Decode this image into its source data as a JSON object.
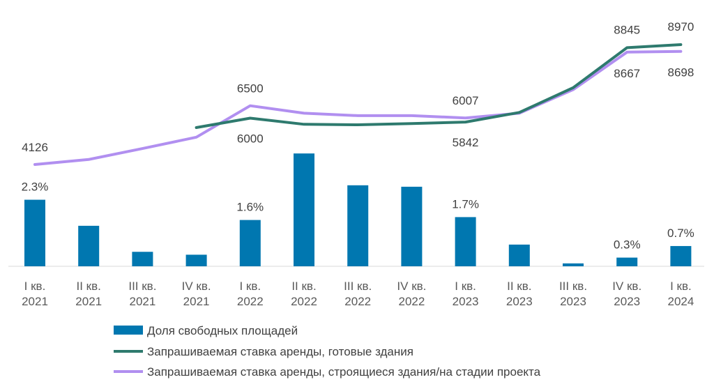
{
  "chart_data": {
    "type": "bar+line",
    "categories": [
      [
        "I кв.",
        "2021"
      ],
      [
        "II кв.",
        "2021"
      ],
      [
        "III кв.",
        "2021"
      ],
      [
        "IV кв.",
        "2021"
      ],
      [
        "I кв.",
        "2022"
      ],
      [
        "II кв.",
        "2022"
      ],
      [
        "III кв.",
        "2022"
      ],
      [
        "IV кв.",
        "2022"
      ],
      [
        "I кв.",
        "2023"
      ],
      [
        "II кв.",
        "2023"
      ],
      [
        "III кв.",
        "2023"
      ],
      [
        "IV кв.",
        "2023"
      ],
      [
        "I кв.",
        "2024"
      ]
    ],
    "bars": {
      "name": "Доля свободных площадей",
      "color": "#0077b0",
      "values": [
        2.3,
        1.4,
        0.5,
        0.4,
        1.6,
        3.9,
        2.8,
        2.75,
        1.7,
        0.75,
        0.1,
        0.3,
        0.7
      ],
      "labels": [
        "2.3%",
        null,
        null,
        null,
        "1.6%",
        null,
        null,
        null,
        "1.7%",
        null,
        null,
        "0.3%",
        "0.7%"
      ],
      "ylim": [
        0,
        4
      ]
    },
    "lines": [
      {
        "name": "Запрашиваемая ставка аренды, готовые здания",
        "color": "#2e7a6e",
        "values": [
          null,
          null,
          null,
          5620,
          6000,
          5750,
          5730,
          5780,
          5842,
          6230,
          7230,
          8845,
          8970
        ],
        "labels": [
          null,
          null,
          null,
          null,
          "6000",
          null,
          null,
          null,
          "5842",
          null,
          null,
          "8845",
          "8970"
        ]
      },
      {
        "name": "Запрашиваемая ставка аренды, строящиеся здания/на стадии проекта",
        "color": "#b18ff0",
        "values": [
          4126,
          4330,
          4770,
          5230,
          6500,
          6200,
          6100,
          6100,
          6007,
          6200,
          7150,
          8667,
          8698
        ],
        "labels": [
          "4126",
          null,
          null,
          null,
          "6500",
          null,
          null,
          null,
          "6007",
          null,
          null,
          "8667",
          "8698"
        ]
      }
    ],
    "line_ylim": [
      2000,
      10000
    ]
  }
}
